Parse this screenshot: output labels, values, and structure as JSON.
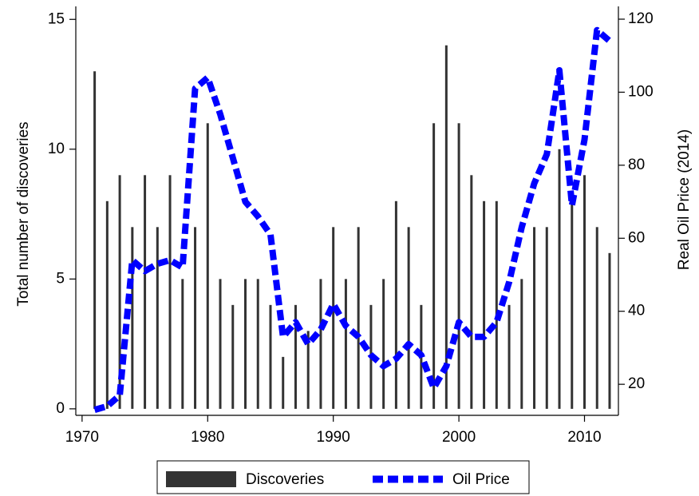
{
  "chart_data": {
    "type": "bar-line",
    "x": [
      1971,
      1972,
      1973,
      1974,
      1975,
      1976,
      1977,
      1978,
      1979,
      1980,
      1981,
      1982,
      1983,
      1984,
      1985,
      1986,
      1987,
      1988,
      1989,
      1990,
      1991,
      1992,
      1993,
      1994,
      1995,
      1996,
      1997,
      1998,
      1999,
      2000,
      2001,
      2002,
      2003,
      2004,
      2005,
      2006,
      2007,
      2008,
      2009,
      2010,
      2011,
      2012
    ],
    "series": [
      {
        "name": "Discoveries",
        "type": "bar",
        "color": "#333333",
        "values": [
          13,
          8,
          9,
          7,
          9,
          7,
          9,
          5,
          7,
          11,
          5,
          4,
          5,
          5,
          4,
          2,
          4,
          3,
          5,
          7,
          5,
          7,
          4,
          5,
          8,
          7,
          4,
          11,
          14,
          11,
          9,
          8,
          8,
          4,
          5,
          7,
          7,
          10,
          8,
          9,
          7,
          6
        ]
      },
      {
        "name": "Oil Price",
        "type": "line",
        "axis": "y2",
        "color": "#0000ff",
        "values": [
          13,
          14,
          17,
          54,
          51,
          53,
          54,
          52,
          101,
          104,
          94,
          82,
          70,
          66,
          61,
          33,
          37,
          31,
          35,
          42,
          36,
          33,
          28,
          25,
          27,
          31,
          28,
          19,
          25,
          37,
          33,
          33,
          37,
          48,
          63,
          75,
          83,
          106,
          69,
          87,
          117,
          114
        ]
      }
    ],
    "xlim": [
      1969.5,
      2012.7
    ],
    "xticks": [
      1970,
      1980,
      1990,
      2000,
      2010
    ],
    "ylim": [
      -0.25,
      15.5
    ],
    "yticks": [
      0,
      5,
      10,
      15
    ],
    "y2lim": [
      11.5,
      123.5
    ],
    "y2ticks": [
      20,
      40,
      60,
      80,
      100,
      120
    ],
    "ylabel": "Total number of discoveries",
    "y2label": "Real Oil Price (2014)",
    "legend": "bottom"
  }
}
